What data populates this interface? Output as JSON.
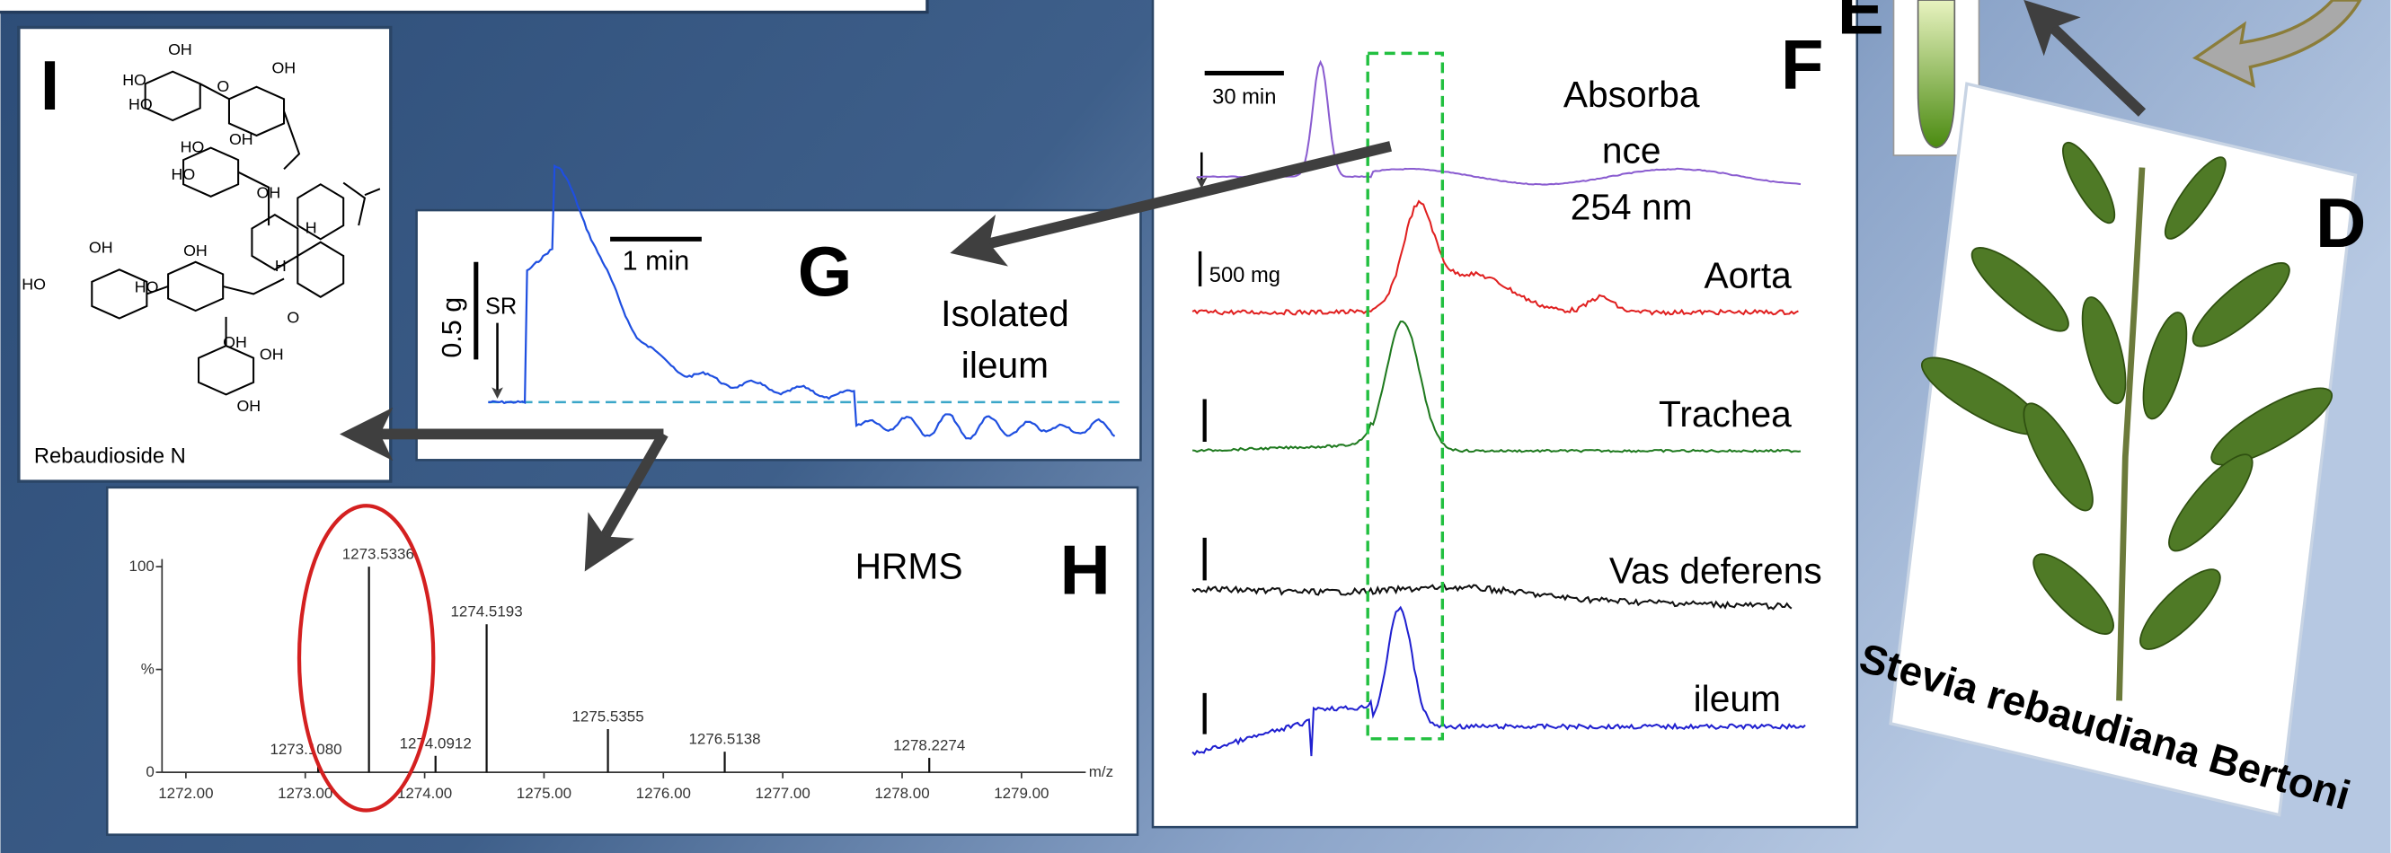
{
  "panels": {
    "I": {
      "letter": "I",
      "caption": "Rebaudioside N",
      "structure_labels": [
        "OH",
        "HO",
        "HO",
        "OH",
        "O",
        "OH",
        "HO",
        "HO",
        "OH",
        "H",
        "H",
        "O",
        "OH",
        "HO",
        "HO",
        "OH",
        "OH",
        "OH",
        "OH"
      ]
    },
    "G": {
      "letter": "G",
      "title_lines": [
        "Isolated",
        "ileum"
      ],
      "time_bar": "1 min",
      "force_bar": "0.5 g",
      "stimulus": "SR"
    },
    "H": {
      "letter": "H",
      "title": "HRMS",
      "spectrum": {
        "xlabel": "m/z",
        "xlim": [
          1271.8,
          1279.5
        ],
        "ylim": [
          0,
          100
        ],
        "xticks": [
          {
            "value": 1272,
            "label": "1272.00"
          },
          {
            "value": 1273,
            "label": "1273.00"
          },
          {
            "value": 1274,
            "label": "1274.00"
          },
          {
            "value": 1275,
            "label": "1275.00"
          },
          {
            "value": 1276,
            "label": "1276.00"
          },
          {
            "value": 1277,
            "label": "1277.00"
          },
          {
            "value": 1278,
            "label": "1278.00"
          },
          {
            "value": 1279,
            "label": "1279.00"
          }
        ],
        "yticks": [
          0,
          {
            "value": 50,
            "label": "%"
          },
          100
        ],
        "x": [
          1273.108,
          1273.5336,
          1274.0912,
          1274.5193,
          1275.5355,
          1276.5138,
          1278.2274
        ],
        "value_labels": [
          "1273.1080",
          "1273.5336",
          "1274.0912",
          "1274.5193",
          "1275.5355",
          "1276.5138",
          "1278.2274"
        ],
        "values": [
          5,
          100,
          8,
          72,
          21,
          10,
          7
        ]
      }
    },
    "F": {
      "letter": "F",
      "time_bar": "30 min",
      "force_bar": "500 mg",
      "traces": [
        "Absorba\nnce\n254 nm",
        "Aorta",
        "Trachea",
        "Vas deferens",
        "ileum"
      ]
    },
    "E": {
      "letter": "E"
    },
    "D": {
      "letter": "D",
      "caption": "Stevia rebaudiana Bertoni"
    }
  }
}
